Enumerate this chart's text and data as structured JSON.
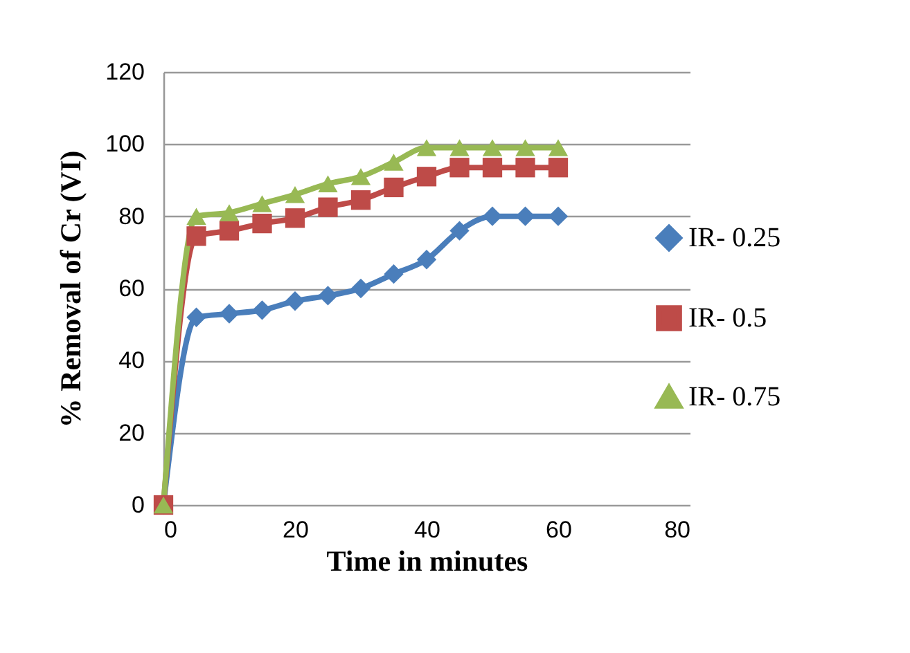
{
  "chart_data": {
    "type": "line",
    "xlabel": "Time in minutes",
    "ylabel": "% Removal of Cr (VI)",
    "x": [
      0,
      5,
      10,
      15,
      20,
      25,
      30,
      35,
      40,
      45,
      50,
      55,
      60
    ],
    "xlim": [
      0,
      80
    ],
    "xticks": [
      0,
      20,
      40,
      60,
      80
    ],
    "ylim": [
      0,
      120
    ],
    "yticks": [
      0,
      20,
      40,
      60,
      80,
      100,
      120
    ],
    "grid": "y",
    "legend": "right",
    "series": [
      {
        "name": "IR- 0.25",
        "color": "#4a7ebb",
        "marker": "diamond",
        "values": [
          0,
          52,
          53,
          54,
          56.5,
          58,
          60,
          64,
          68,
          76,
          80,
          80,
          80
        ]
      },
      {
        "name": "IR- 0.5",
        "color": "#be4b48",
        "marker": "square",
        "values": [
          0,
          74.5,
          76,
          78,
          79.5,
          82.5,
          84.5,
          88,
          91,
          93.5,
          93.5,
          93.5,
          93.5
        ]
      },
      {
        "name": "IR- 0.75",
        "color": "#98b954",
        "marker": "triangle",
        "values": [
          0,
          80,
          81,
          83.5,
          86,
          89,
          91,
          95,
          99,
          99,
          99,
          99,
          99
        ]
      }
    ]
  }
}
